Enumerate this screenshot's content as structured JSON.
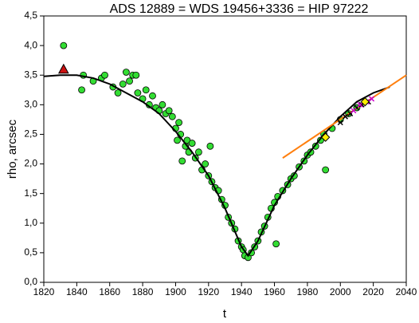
{
  "chart_data": {
    "type": "scatter",
    "title": "ADS 12889 = WDS 19456+3336 = HIP 97222",
    "x_label": "t",
    "y_label": "rho, arcsec",
    "xlim": [
      1820,
      2040
    ],
    "xticks": [
      1820,
      1840,
      1860,
      1880,
      1900,
      1920,
      1940,
      1960,
      1980,
      2000,
      2020,
      2040
    ],
    "ylim": [
      0,
      4.5
    ],
    "yticks": [
      {
        "value": 0,
        "label": "0,0"
      },
      {
        "value": 0.5,
        "label": "0,5"
      },
      {
        "value": 1,
        "label": "1,0"
      },
      {
        "value": 1.5,
        "label": "1,5"
      },
      {
        "value": 2,
        "label": "2,0"
      },
      {
        "value": 2.5,
        "label": "2,5"
      },
      {
        "value": 3,
        "label": "3,0"
      },
      {
        "value": 3.5,
        "label": "3,5"
      },
      {
        "value": 4,
        "label": "4,0"
      },
      {
        "value": 4.5,
        "label": "4,5"
      }
    ],
    "series": [
      {
        "marker": "line",
        "color": "#000000",
        "x": [
          1820,
          1830,
          1840,
          1850,
          1860,
          1870,
          1880,
          1890,
          1900,
          1910,
          1920,
          1930,
          1940,
          1944,
          1950,
          1960,
          1970,
          1980,
          1990,
          2000,
          2010,
          2020,
          2030
        ],
        "values": [
          3.48,
          3.5,
          3.5,
          3.45,
          3.35,
          3.2,
          3.05,
          2.85,
          2.55,
          2.2,
          1.8,
          1.25,
          0.6,
          0.45,
          0.7,
          1.3,
          1.75,
          2.15,
          2.5,
          2.8,
          3.05,
          3.2,
          3.3
        ]
      },
      {
        "marker": "line",
        "color": "#ff7f0e",
        "x": [
          1965,
          2040
        ],
        "values": [
          2.1,
          3.5
        ]
      },
      {
        "marker": "circle",
        "color": "#33dd33",
        "x": [
          1832,
          1843,
          1844,
          1850,
          1855,
          1857,
          1862,
          1865,
          1868,
          1870,
          1872,
          1874,
          1876,
          1877,
          1880,
          1882,
          1884,
          1886,
          1888,
          1890,
          1892,
          1894,
          1896,
          1898,
          1900,
          1901,
          1902,
          1903,
          1904,
          1906,
          1907,
          1908,
          1910,
          1912,
          1914,
          1916,
          1918,
          1920,
          1921,
          1922,
          1924,
          1926,
          1928,
          1930,
          1932,
          1934,
          1936,
          1938,
          1940,
          1941,
          1942,
          1944,
          1946,
          1948,
          1950,
          1952,
          1954,
          1956,
          1958,
          1960,
          1961,
          1962,
          1965,
          1968,
          1970,
          1972,
          1975,
          1978,
          1980,
          1982,
          1985,
          1988,
          1990,
          1991,
          1995,
          2000,
          2005,
          2010
        ],
        "values": [
          4.0,
          3.25,
          3.5,
          3.4,
          3.45,
          3.5,
          3.3,
          3.2,
          3.35,
          3.55,
          3.4,
          3.5,
          3.5,
          3.2,
          3.1,
          3.25,
          3.0,
          3.15,
          2.95,
          2.9,
          3.0,
          2.85,
          2.9,
          2.8,
          2.6,
          2.4,
          2.7,
          2.5,
          2.05,
          2.3,
          2.4,
          2.2,
          2.35,
          2.1,
          2.2,
          1.9,
          2.0,
          1.8,
          2.3,
          1.7,
          1.6,
          1.55,
          1.4,
          1.3,
          1.1,
          1.0,
          0.9,
          0.7,
          0.6,
          0.55,
          0.45,
          0.42,
          0.5,
          0.6,
          0.7,
          0.85,
          0.95,
          1.1,
          1.25,
          1.35,
          0.65,
          1.45,
          1.55,
          1.65,
          1.75,
          1.8,
          1.95,
          2.05,
          2.15,
          2.2,
          2.3,
          2.4,
          2.5,
          1.9,
          2.6,
          2.75,
          2.85,
          2.95
        ]
      },
      {
        "marker": "cross",
        "color": "#000000",
        "x": [
          2000,
          2003,
          2006,
          2010,
          2013,
          2017
        ],
        "values": [
          2.7,
          2.8,
          2.85,
          2.95,
          3.0,
          3.05
        ]
      },
      {
        "marker": "cross",
        "color": "#cc00cc",
        "x": [
          2008,
          2012,
          2016,
          2019
        ],
        "values": [
          2.9,
          3.0,
          3.05,
          3.1
        ]
      },
      {
        "marker": "triangle",
        "color": "#cc1111",
        "x": [
          1832
        ],
        "values": [
          3.6
        ]
      },
      {
        "marker": "diamond",
        "color": "#ffee00",
        "x": [
          1991,
          2015
        ],
        "values": [
          2.45,
          3.05
        ]
      }
    ]
  }
}
